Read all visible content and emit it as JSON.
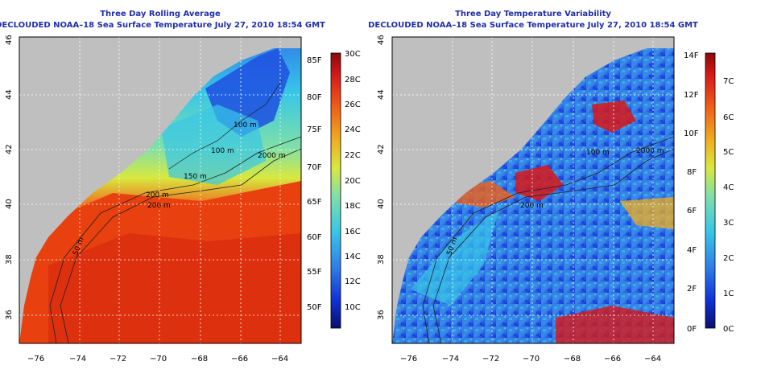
{
  "left_panel": {
    "title": "Three Day Rolling Average",
    "subtitle": "DECLOUDED NOAA–18 Sea Surface Temperature July 27, 2010 18:54 GMT",
    "colorbar_f": [
      "85F",
      "80F",
      "75F",
      "70F",
      "65F",
      "60F",
      "55F",
      "50F"
    ],
    "colorbar_c": [
      "30C",
      "28C",
      "26C",
      "24C",
      "22C",
      "20C",
      "18C",
      "16C",
      "14C",
      "12C",
      "10C"
    ],
    "contours": [
      "2000 m",
      "200 m",
      "100 m",
      "100 m",
      "150 m",
      "200 m",
      "50 m"
    ]
  },
  "right_panel": {
    "title": "Three Day Temperature Variability",
    "subtitle": "DECLOUDED NOAA–18 Sea Surface Temperature July 27, 2010 18:54 GMT",
    "colorbar_f": [
      "14F",
      "12F",
      "10F",
      "8F",
      "6F",
      "4F",
      "2F",
      "0F"
    ],
    "colorbar_c": [
      "7C",
      "6C",
      "5C",
      "4C",
      "3C",
      "2C",
      "1C",
      "0C"
    ],
    "contours": [
      "2000 m",
      "200 m",
      "100 m",
      "50 m"
    ]
  },
  "axes": {
    "lon_ticks": [
      "−76",
      "−74",
      "−72",
      "−70",
      "−68",
      "−66",
      "−64"
    ],
    "lat_ticks": [
      "46",
      "44",
      "42",
      "40",
      "38",
      "36"
    ]
  },
  "colors": {
    "land": "#bfbfbf",
    "title": "#1f2fa8",
    "sst_scale": [
      "#08106e",
      "#1030d8",
      "#2f7de8",
      "#37c6e8",
      "#7fe0a8",
      "#d8e840",
      "#f0b020",
      "#f06018",
      "#d81818",
      "#8a0a0a"
    ],
    "var_scale": [
      "#08106e",
      "#1030d8",
      "#2f7de8",
      "#37c6e8",
      "#7fe0a8",
      "#d8e840",
      "#f0b020",
      "#f06018",
      "#d81818",
      "#8a0a0a"
    ]
  }
}
